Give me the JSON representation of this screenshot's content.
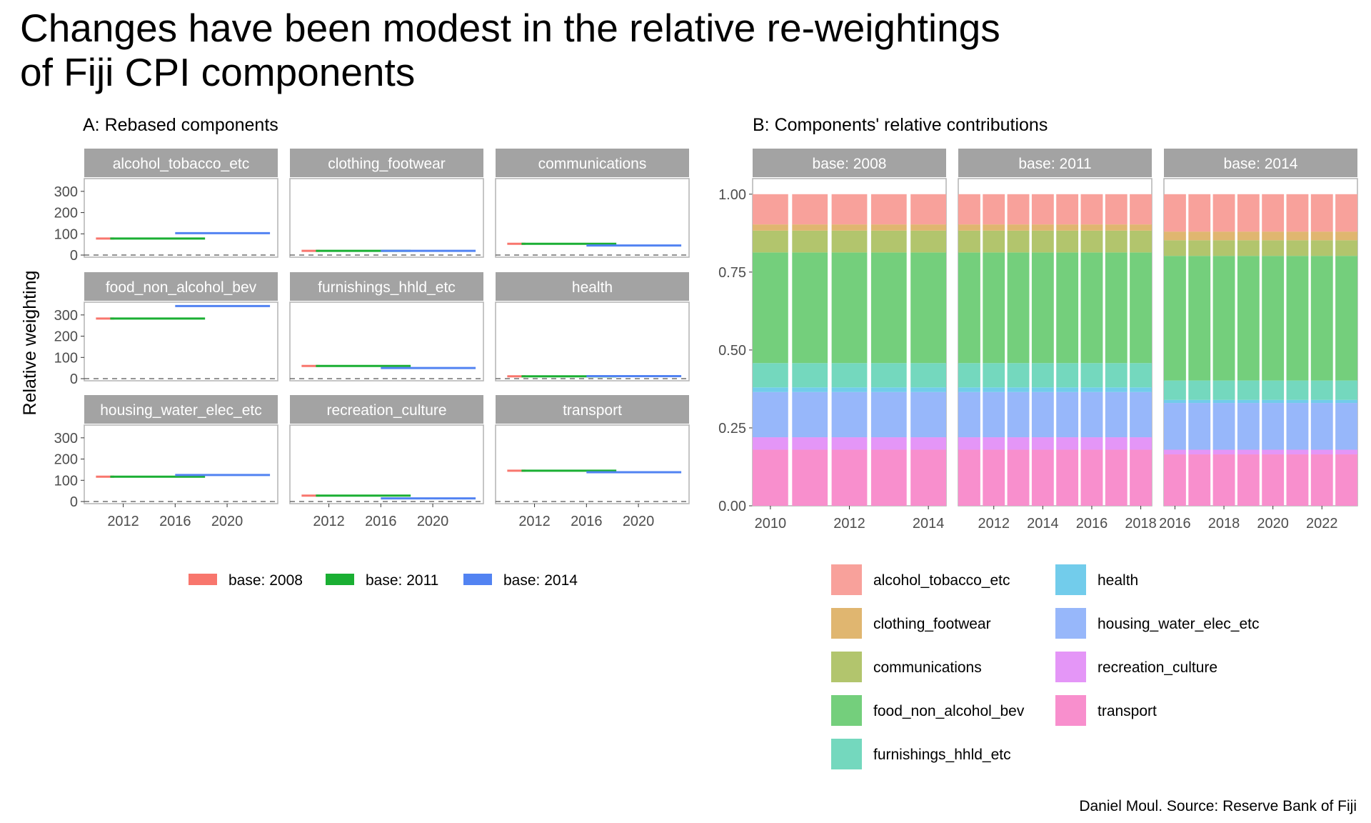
{
  "title_lines": [
    "Changes have been modest in the relative re-weightings",
    "of Fiji CPI components"
  ],
  "caption": "Daniel Moul. Source: Reserve Bank of Fiji",
  "chart_data": [
    {
      "type": "line",
      "subtitle": "A: Rebased components",
      "ylabel": "Relative weighting",
      "ylim": [
        -10,
        360
      ],
      "yticks": [
        0,
        100,
        200,
        300
      ],
      "xlim": [
        2009,
        2023.9
      ],
      "xticks": [
        2012,
        2016,
        2020
      ],
      "reference_line": {
        "y": 0,
        "style": "dashed"
      },
      "legend": {
        "position": "bottom"
      },
      "series_colors": {
        "base: 2008": "#F8766D",
        "base: 2011": "#1AAF33",
        "base: 2014": "#5283F2"
      },
      "panels": [
        {
          "name": "alcohol_tobacco_etc",
          "segments": [
            {
              "series": "base: 2008",
              "x": [
                2009.9,
                2011.3
              ],
              "y": 78
            },
            {
              "series": "base: 2011",
              "x": [
                2011.0,
                2018.3
              ],
              "y": 78
            },
            {
              "series": "base: 2014",
              "x": [
                2016.0,
                2023.3
              ],
              "y": 103
            }
          ]
        },
        {
          "name": "clothing_footwear",
          "segments": [
            {
              "series": "base: 2008",
              "x": [
                2009.9,
                2011.3
              ],
              "y": 20
            },
            {
              "series": "base: 2011",
              "x": [
                2011.0,
                2018.3
              ],
              "y": 20
            },
            {
              "series": "base: 2014",
              "x": [
                2016.0,
                2023.3
              ],
              "y": 20
            }
          ]
        },
        {
          "name": "communications",
          "segments": [
            {
              "series": "base: 2008",
              "x": [
                2009.9,
                2011.3
              ],
              "y": 53
            },
            {
              "series": "base: 2011",
              "x": [
                2011.0,
                2018.3
              ],
              "y": 53
            },
            {
              "series": "base: 2014",
              "x": [
                2016.0,
                2023.3
              ],
              "y": 45
            }
          ]
        },
        {
          "name": "food_non_alcohol_bev",
          "segments": [
            {
              "series": "base: 2008",
              "x": [
                2009.9,
                2011.3
              ],
              "y": 283
            },
            {
              "series": "base: 2011",
              "x": [
                2011.0,
                2018.3
              ],
              "y": 283
            },
            {
              "series": "base: 2014",
              "x": [
                2016.0,
                2023.3
              ],
              "y": 342
            }
          ]
        },
        {
          "name": "furnishings_hhld_etc",
          "segments": [
            {
              "series": "base: 2008",
              "x": [
                2009.9,
                2011.3
              ],
              "y": 60
            },
            {
              "series": "base: 2011",
              "x": [
                2011.0,
                2018.3
              ],
              "y": 60
            },
            {
              "series": "base: 2014",
              "x": [
                2016.0,
                2023.3
              ],
              "y": 50
            }
          ]
        },
        {
          "name": "health",
          "segments": [
            {
              "series": "base: 2008",
              "x": [
                2009.9,
                2011.3
              ],
              "y": 11
            },
            {
              "series": "base: 2011",
              "x": [
                2011.0,
                2018.3
              ],
              "y": 11
            },
            {
              "series": "base: 2014",
              "x": [
                2016.0,
                2023.3
              ],
              "y": 12
            }
          ]
        },
        {
          "name": "housing_water_elec_etc",
          "segments": [
            {
              "series": "base: 2008",
              "x": [
                2009.9,
                2011.3
              ],
              "y": 117
            },
            {
              "series": "base: 2011",
              "x": [
                2011.0,
                2018.3
              ],
              "y": 117
            },
            {
              "series": "base: 2014",
              "x": [
                2016.0,
                2023.3
              ],
              "y": 125
            }
          ]
        },
        {
          "name": "recreation_culture",
          "segments": [
            {
              "series": "base: 2008",
              "x": [
                2009.9,
                2011.3
              ],
              "y": 28
            },
            {
              "series": "base: 2011",
              "x": [
                2011.0,
                2018.3
              ],
              "y": 28
            },
            {
              "series": "base: 2014",
              "x": [
                2016.0,
                2023.3
              ],
              "y": 15
            }
          ]
        },
        {
          "name": "transport",
          "segments": [
            {
              "series": "base: 2008",
              "x": [
                2009.9,
                2011.3
              ],
              "y": 145
            },
            {
              "series": "base: 2011",
              "x": [
                2011.0,
                2018.3
              ],
              "y": 145
            },
            {
              "series": "base: 2014",
              "x": [
                2016.0,
                2023.3
              ],
              "y": 138
            }
          ]
        }
      ]
    },
    {
      "type": "bar",
      "stacked": true,
      "subtitle": "B: Components' relative contributions",
      "ylim": [
        0,
        1.05
      ],
      "yticks": [
        "0.00",
        "0.25",
        "0.50",
        "0.75",
        "1.00"
      ],
      "legend": {
        "position": "bottom"
      },
      "categories": [
        "transport",
        "recreation_culture",
        "housing_water_elec_etc",
        "health",
        "furnishings_hhld_etc",
        "food_non_alcohol_bev",
        "communications",
        "clothing_footwear",
        "alcohol_tobacco_etc"
      ],
      "legend_order": [
        "alcohol_tobacco_etc",
        "clothing_footwear",
        "communications",
        "food_non_alcohol_bev",
        "furnishings_hhld_etc",
        "health",
        "housing_water_elec_etc",
        "recreation_culture",
        "transport"
      ],
      "colors": {
        "alcohol_tobacco_etc": "#F8A19B",
        "clothing_footwear": "#E0B670",
        "communications": "#B2C56D",
        "food_non_alcohol_bev": "#74CF7C",
        "furnishings_hhld_etc": "#74D8BE",
        "health": "#72CCEB",
        "housing_water_elec_etc": "#97B7FA",
        "recreation_culture": "#E496F7",
        "transport": "#F88FCD"
      },
      "panels": [
        {
          "name": "base: 2008",
          "xlim": [
            2009.55,
            2014.45
          ],
          "xticks": [
            2010,
            2012,
            2014
          ],
          "years": [
            2010,
            2011,
            2012,
            2013,
            2014
          ],
          "shares": [
            0.18,
            0.04,
            0.145,
            0.015,
            0.078,
            0.355,
            0.07,
            0.02,
            0.097
          ]
        },
        {
          "name": "base: 2011",
          "xlim": [
            2010.55,
            2018.45
          ],
          "xticks": [
            2012,
            2014,
            2016,
            2018
          ],
          "years": [
            2011,
            2012,
            2013,
            2014,
            2015,
            2016,
            2017,
            2018
          ],
          "shares": [
            0.18,
            0.04,
            0.145,
            0.015,
            0.078,
            0.355,
            0.07,
            0.02,
            0.097
          ]
        },
        {
          "name": "base: 2014",
          "xlim": [
            2015.55,
            2023.45
          ],
          "xticks": [
            2016,
            2018,
            2020,
            2022
          ],
          "years": [
            2016,
            2017,
            2018,
            2019,
            2020,
            2021,
            2022,
            2023
          ],
          "shares": [
            0.165,
            0.015,
            0.15,
            0.01,
            0.062,
            0.4,
            0.05,
            0.028,
            0.12
          ]
        }
      ]
    }
  ]
}
